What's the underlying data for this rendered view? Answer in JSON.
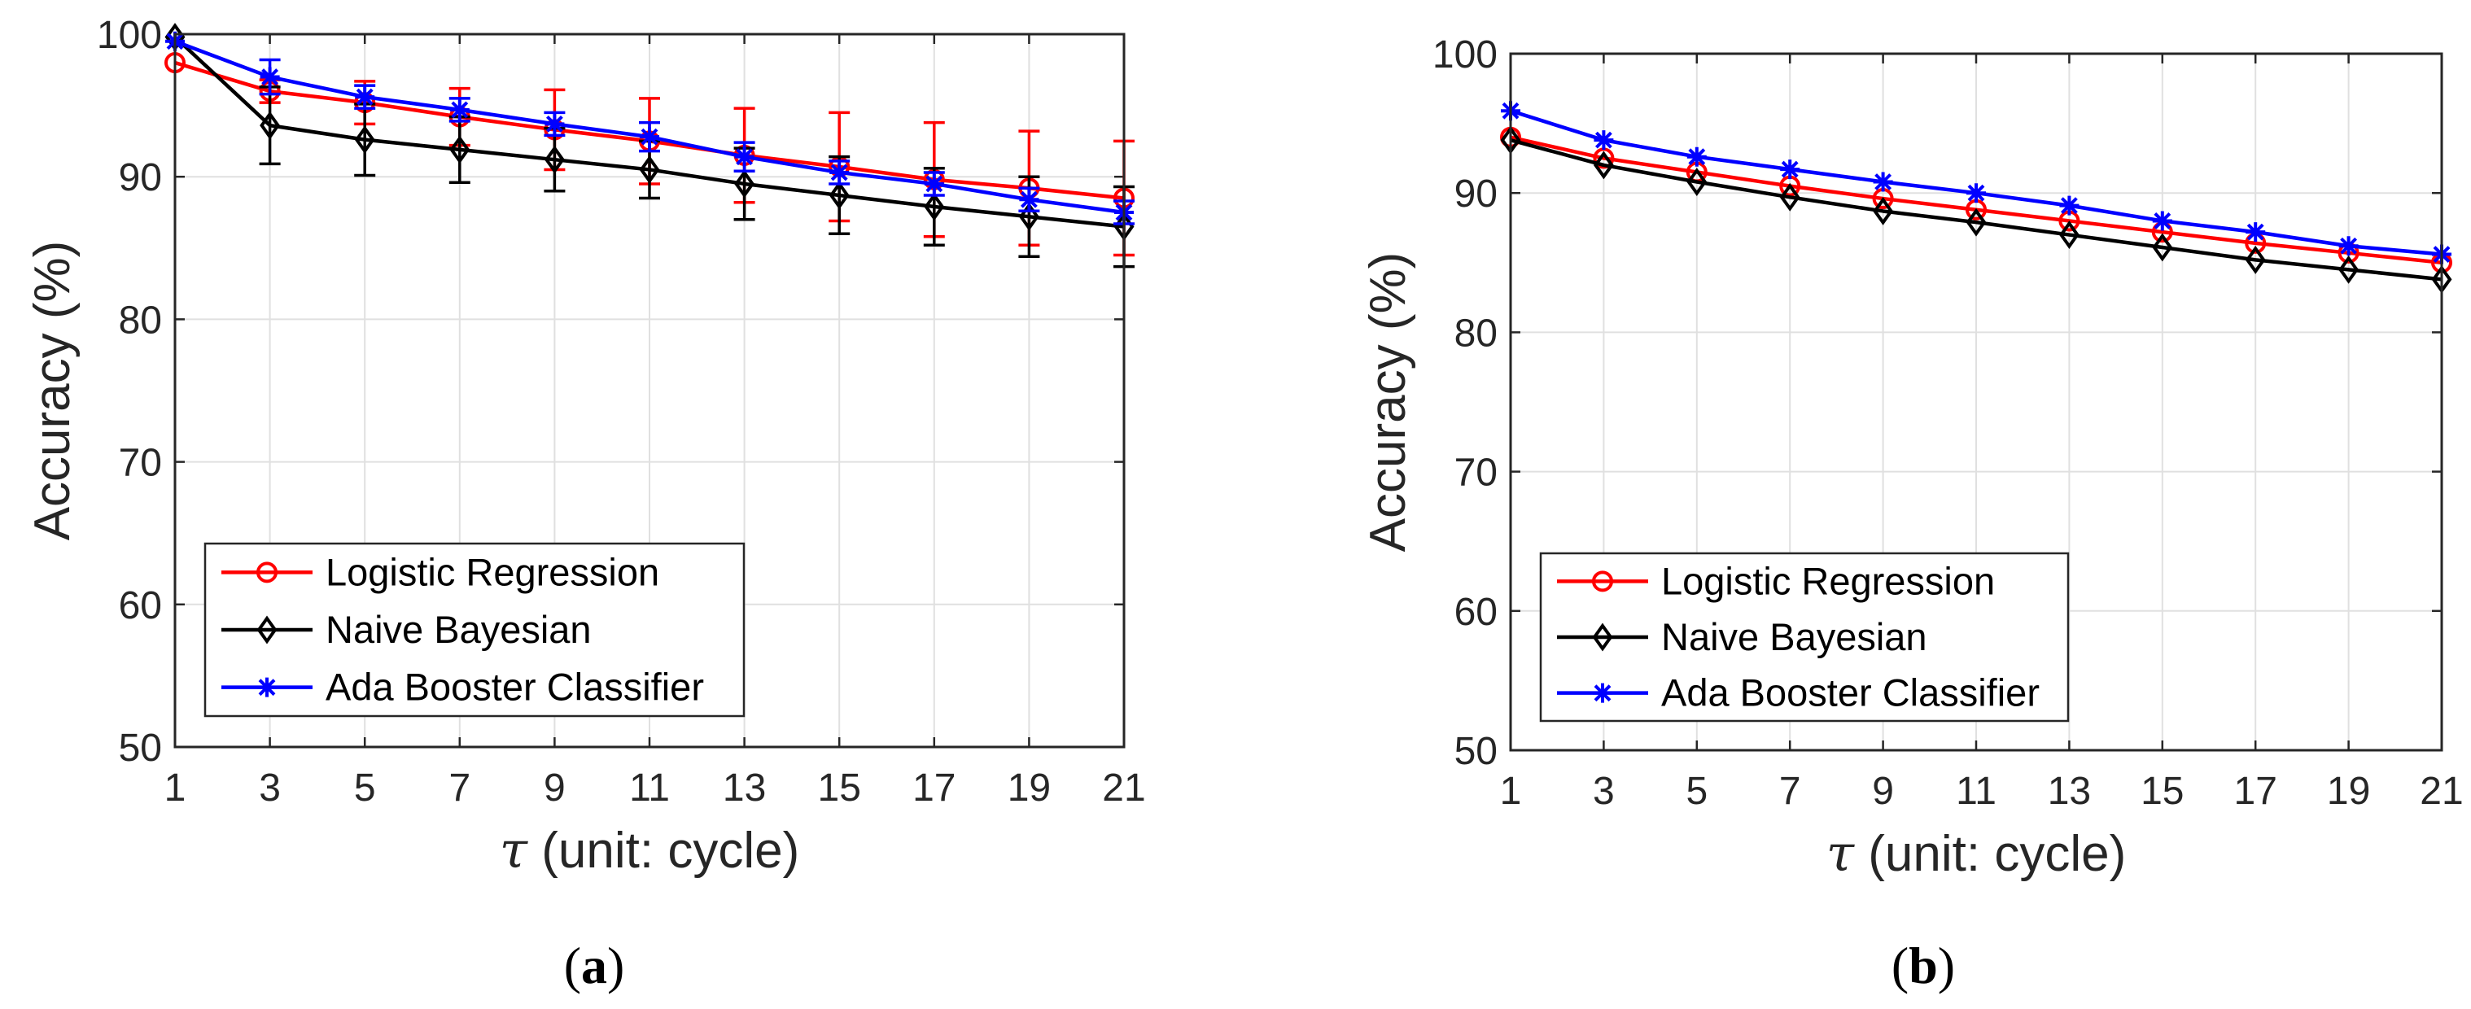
{
  "colors": {
    "logistic": "#ff0000",
    "naive": "#000000",
    "ada": "#0000ff",
    "grid": "#e0e0e0",
    "axis": "#262626"
  },
  "chart_data": [
    {
      "type": "line",
      "panel_label": "a",
      "title": "",
      "xlabel_symbol": "τ",
      "xlabel": "(unit: cycle)",
      "ylabel": "Accuracy (%)",
      "x": [
        1,
        3,
        5,
        7,
        9,
        11,
        13,
        15,
        17,
        19,
        21
      ],
      "xlim": [
        1,
        21
      ],
      "ylim": [
        50,
        100
      ],
      "xticks": [
        1,
        3,
        5,
        7,
        9,
        11,
        13,
        15,
        17,
        19,
        21
      ],
      "yticks": [
        50,
        60,
        70,
        80,
        90,
        100
      ],
      "grid": true,
      "legend_position": "bottom-left",
      "series": [
        {
          "name": "Logistic Regression",
          "color": "#ff0000",
          "marker": "circle",
          "values": [
            98.0,
            96.0,
            95.2,
            94.2,
            93.3,
            92.5,
            91.5,
            90.7,
            89.8,
            89.2,
            88.5
          ],
          "error": [
            0.0,
            0.8,
            1.5,
            2.0,
            2.8,
            3.0,
            3.3,
            3.8,
            4.0,
            4.0,
            4.0
          ]
        },
        {
          "name": "Naive Bayesian",
          "color": "#000000",
          "marker": "diamond",
          "values": [
            99.8,
            93.6,
            92.6,
            91.9,
            91.2,
            90.5,
            89.5,
            88.7,
            87.9,
            87.2,
            86.5
          ],
          "error": [
            0.0,
            2.7,
            2.5,
            2.3,
            2.2,
            2.0,
            2.5,
            2.7,
            2.7,
            2.8,
            2.8
          ]
        },
        {
          "name": "Ada Booster Classifier",
          "color": "#0000ff",
          "marker": "asterisk",
          "values": [
            99.5,
            97.0,
            95.6,
            94.7,
            93.7,
            92.8,
            91.4,
            90.3,
            89.5,
            88.4,
            87.5
          ],
          "error": [
            0.0,
            1.2,
            0.8,
            0.8,
            0.8,
            1.0,
            1.0,
            0.8,
            0.8,
            0.8,
            0.8
          ]
        }
      ]
    },
    {
      "type": "line",
      "panel_label": "b",
      "title": "",
      "xlabel_symbol": "τ",
      "xlabel": "(unit: cycle)",
      "ylabel": "Accuracy (%)",
      "x": [
        1,
        3,
        5,
        7,
        9,
        11,
        13,
        15,
        17,
        19,
        21
      ],
      "xlim": [
        1,
        21
      ],
      "ylim": [
        50,
        100
      ],
      "xticks": [
        1,
        3,
        5,
        7,
        9,
        11,
        13,
        15,
        17,
        19,
        21
      ],
      "yticks": [
        50,
        60,
        70,
        80,
        90,
        100
      ],
      "grid": true,
      "legend_position": "bottom-left",
      "series": [
        {
          "name": "Logistic Regression",
          "color": "#ff0000",
          "marker": "circle",
          "values": [
            94.0,
            92.5,
            91.5,
            90.5,
            89.6,
            88.8,
            88.0,
            87.2,
            86.4,
            85.7,
            85.0
          ]
        },
        {
          "name": "Naive Bayesian",
          "color": "#000000",
          "marker": "diamond",
          "values": [
            93.8,
            92.0,
            90.8,
            89.7,
            88.7,
            87.9,
            87.0,
            86.1,
            85.2,
            84.5,
            83.8
          ]
        },
        {
          "name": "Ada Booster Classifier",
          "color": "#0000ff",
          "marker": "asterisk",
          "values": [
            95.9,
            93.8,
            92.6,
            91.7,
            90.8,
            90.0,
            89.1,
            88.0,
            87.2,
            86.2,
            85.6
          ]
        }
      ]
    }
  ]
}
